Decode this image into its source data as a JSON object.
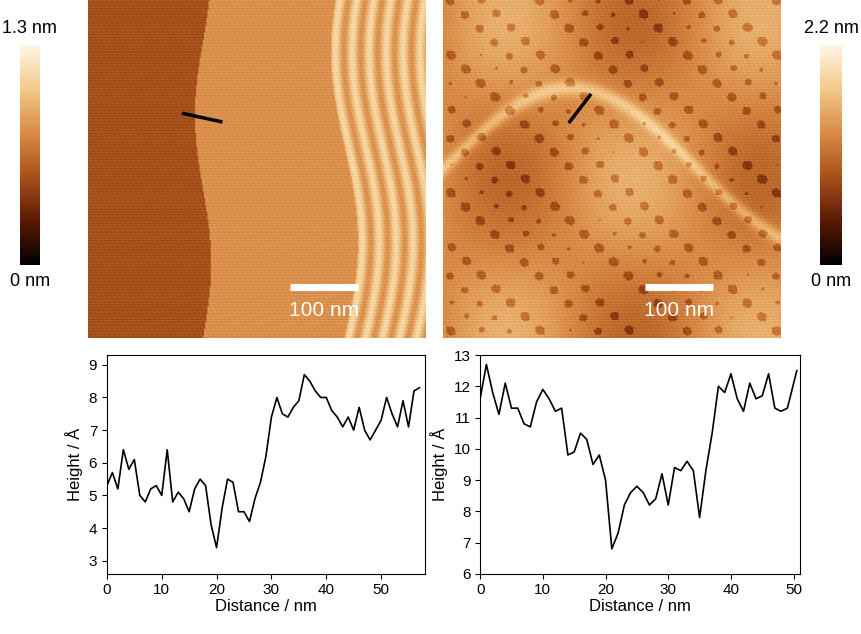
{
  "chart_data": [
    {
      "type": "image",
      "xlim": [
        0,
        500
      ],
      "ylim": [
        0,
        500
      ],
      "tick_labels": false,
      "colorbar_range": [
        0,
        1.3
      ],
      "colorbar_ticks": [
        {
          "value": 0,
          "label": "0 nm"
        },
        {
          "value": 1.3,
          "label": "1.3 nm"
        }
      ],
      "scale_bar": {
        "length": 100,
        "label": "100 nm"
      },
      "profile_line": {
        "x": [
          142,
          197
        ],
        "y": [
          332,
          320
        ],
        "color": "#000000"
      }
    },
    {
      "type": "image",
      "xlim": [
        0,
        500
      ],
      "ylim": [
        0,
        500
      ],
      "tick_labels": false,
      "colorbar_range": [
        0,
        2.2
      ],
      "colorbar_ticks": [
        {
          "value": 0,
          "label": "0 nm"
        },
        {
          "value": 2.2,
          "label": "2.2 nm"
        }
      ],
      "scale_bar": {
        "length": 100,
        "label": "100 nm"
      },
      "profile_line": {
        "x": [
          188,
          218
        ],
        "y": [
          320,
          359
        ],
        "color": "#000000"
      }
    },
    {
      "type": "line",
      "x_label": "Distance / nm",
      "y_label": "Height / Å",
      "xlim": [
        0,
        58
      ],
      "ylim": [
        2.6,
        9.3
      ],
      "xticks": [
        0,
        10,
        20,
        30,
        40,
        50
      ],
      "yticks": [
        3,
        4,
        5,
        6,
        7,
        8,
        9
      ],
      "series": [
        {
          "color": "#000000",
          "x": [
            0,
            1,
            2,
            3,
            4,
            5,
            6,
            7,
            8,
            9,
            10,
            11,
            12,
            13,
            14,
            15,
            16,
            17,
            18,
            19,
            20,
            21,
            22,
            23,
            24,
            25,
            26,
            27,
            28,
            29,
            30,
            31,
            32,
            33,
            34,
            35,
            36,
            37,
            38,
            39,
            40,
            41,
            42,
            43,
            44,
            45,
            46,
            47,
            48,
            49,
            50,
            51,
            52,
            53,
            54,
            55,
            56,
            57
          ],
          "values": [
            5.3,
            5.7,
            5.2,
            6.4,
            5.8,
            6.1,
            5.0,
            4.8,
            5.2,
            5.3,
            5.0,
            6.4,
            4.8,
            5.1,
            4.9,
            4.5,
            5.2,
            5.5,
            5.3,
            4.1,
            3.4,
            4.6,
            5.5,
            5.4,
            4.5,
            4.5,
            4.2,
            4.9,
            5.4,
            6.2,
            7.4,
            8.0,
            7.5,
            7.4,
            7.7,
            7.9,
            8.7,
            8.5,
            8.2,
            8.0,
            8.0,
            7.6,
            7.4,
            7.1,
            7.4,
            7.0,
            7.7,
            7.0,
            6.7,
            7.0,
            7.3,
            8.0,
            7.5,
            7.1,
            7.9,
            7.1,
            8.2,
            8.3
          ]
        }
      ]
    },
    {
      "type": "line",
      "x_label": "Distance / nm",
      "y_label": "Height / Å",
      "xlim": [
        0,
        51
      ],
      "ylim": [
        6,
        13
      ],
      "xticks": [
        0,
        10,
        20,
        30,
        40,
        50
      ],
      "yticks": [
        6,
        7,
        8,
        9,
        10,
        11,
        12,
        13
      ],
      "series": [
        {
          "color": "#000000",
          "x": [
            0,
            1,
            2,
            3,
            4,
            5,
            6,
            7,
            8,
            9,
            10,
            11,
            12,
            13,
            14,
            15,
            16,
            17,
            18,
            19,
            20,
            21,
            22,
            23,
            24,
            25,
            26,
            27,
            28,
            29,
            30,
            31,
            32,
            33,
            34,
            35,
            36,
            37,
            38,
            39,
            40,
            41,
            42,
            43,
            44,
            45,
            46,
            47,
            48,
            49,
            50.5
          ],
          "values": [
            11.6,
            12.7,
            11.8,
            11.1,
            12.1,
            11.3,
            11.3,
            10.8,
            10.7,
            11.5,
            11.9,
            11.6,
            11.2,
            11.3,
            9.8,
            9.9,
            10.5,
            10.3,
            9.5,
            9.8,
            9.0,
            6.8,
            7.3,
            8.2,
            8.6,
            8.8,
            8.6,
            8.2,
            8.4,
            9.2,
            8.2,
            9.4,
            9.3,
            9.6,
            9.3,
            7.8,
            9.3,
            10.5,
            12.0,
            11.8,
            12.4,
            11.6,
            11.2,
            12.1,
            11.6,
            11.7,
            12.4,
            11.3,
            11.2,
            11.3,
            12.5
          ]
        }
      ]
    }
  ]
}
